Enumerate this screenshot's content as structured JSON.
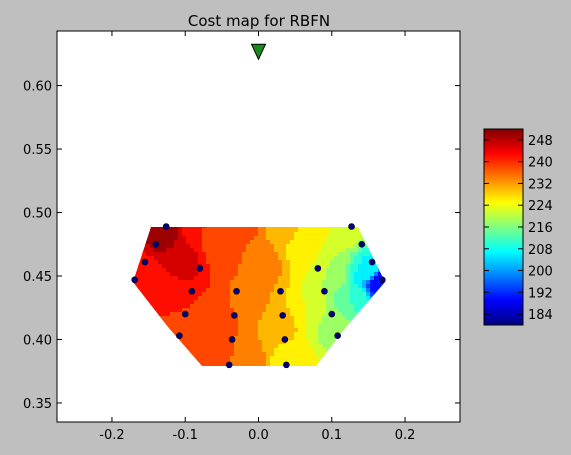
{
  "figure": {
    "background": "#bfbfbf"
  },
  "chart_data": {
    "type": "heatmap",
    "title": "Cost map for RBFN",
    "xlabel": "",
    "ylabel": "",
    "xlim": [
      -0.275,
      0.275
    ],
    "ylim": [
      0.335,
      0.643
    ],
    "x_ticks": [
      "-0.2",
      "-0.1",
      "0.0",
      "0.1",
      "0.2"
    ],
    "x_tick_values": [
      -0.2,
      -0.1,
      0.0,
      0.1,
      0.2
    ],
    "y_ticks": [
      "0.35",
      "0.40",
      "0.45",
      "0.50",
      "0.55",
      "0.60"
    ],
    "y_tick_values": [
      0.35,
      0.4,
      0.45,
      0.5,
      0.55,
      0.6
    ],
    "colormap": "jet",
    "colorbar": {
      "min": 180,
      "max": 252,
      "ticks": [
        "184",
        "192",
        "200",
        "208",
        "216",
        "224",
        "232",
        "240",
        "248"
      ],
      "tick_values": [
        184,
        192,
        200,
        208,
        216,
        224,
        232,
        240,
        248
      ]
    },
    "target": {
      "x": 0.0,
      "y": 0.627,
      "marker": "triangle-down",
      "color": "#1a8a1a"
    },
    "points": [
      {
        "x": -0.126,
        "y": 0.489
      },
      {
        "x": -0.14,
        "y": 0.475
      },
      {
        "x": -0.155,
        "y": 0.461
      },
      {
        "x": -0.169,
        "y": 0.447
      },
      {
        "x": -0.08,
        "y": 0.456
      },
      {
        "x": -0.091,
        "y": 0.438
      },
      {
        "x": -0.1,
        "y": 0.42
      },
      {
        "x": -0.108,
        "y": 0.403
      },
      {
        "x": -0.03,
        "y": 0.438
      },
      {
        "x": -0.033,
        "y": 0.419
      },
      {
        "x": -0.036,
        "y": 0.4
      },
      {
        "x": -0.04,
        "y": 0.38
      },
      {
        "x": 0.03,
        "y": 0.438
      },
      {
        "x": 0.033,
        "y": 0.419
      },
      {
        "x": 0.036,
        "y": 0.4
      },
      {
        "x": 0.038,
        "y": 0.38
      },
      {
        "x": 0.081,
        "y": 0.456
      },
      {
        "x": 0.09,
        "y": 0.438
      },
      {
        "x": 0.1,
        "y": 0.42
      },
      {
        "x": 0.108,
        "y": 0.403
      },
      {
        "x": 0.127,
        "y": 0.489
      },
      {
        "x": 0.141,
        "y": 0.475
      },
      {
        "x": 0.155,
        "y": 0.461
      },
      {
        "x": 0.169,
        "y": 0.447
      }
    ],
    "point_color": "#00007f",
    "cost_field": [
      {
        "x": -0.17,
        "y": 0.45,
        "cost": 240
      },
      {
        "x": -0.13,
        "y": 0.485,
        "cost": 250
      },
      {
        "x": -0.1,
        "y": 0.46,
        "cost": 245
      },
      {
        "x": -0.08,
        "y": 0.49,
        "cost": 240
      },
      {
        "x": -0.13,
        "y": 0.43,
        "cost": 240
      },
      {
        "x": -0.1,
        "y": 0.405,
        "cost": 240
      },
      {
        "x": -0.06,
        "y": 0.42,
        "cost": 240
      },
      {
        "x": -0.05,
        "y": 0.47,
        "cost": 238
      },
      {
        "x": -0.05,
        "y": 0.39,
        "cost": 237
      },
      {
        "x": -0.02,
        "y": 0.49,
        "cost": 237
      },
      {
        "x": -0.02,
        "y": 0.43,
        "cost": 235
      },
      {
        "x": -0.02,
        "y": 0.385,
        "cost": 234
      },
      {
        "x": 0.01,
        "y": 0.46,
        "cost": 233
      },
      {
        "x": 0.03,
        "y": 0.49,
        "cost": 231
      },
      {
        "x": 0.03,
        "y": 0.41,
        "cost": 230
      },
      {
        "x": 0.045,
        "y": 0.385,
        "cost": 226
      },
      {
        "x": 0.06,
        "y": 0.47,
        "cost": 226
      },
      {
        "x": 0.07,
        "y": 0.42,
        "cost": 224
      },
      {
        "x": 0.08,
        "y": 0.49,
        "cost": 225
      },
      {
        "x": 0.1,
        "y": 0.455,
        "cost": 220
      },
      {
        "x": 0.1,
        "y": 0.41,
        "cost": 218
      },
      {
        "x": 0.12,
        "y": 0.485,
        "cost": 222
      },
      {
        "x": 0.13,
        "y": 0.43,
        "cost": 212
      },
      {
        "x": 0.15,
        "y": 0.455,
        "cost": 208
      },
      {
        "x": 0.165,
        "y": 0.445,
        "cost": 188
      }
    ]
  }
}
